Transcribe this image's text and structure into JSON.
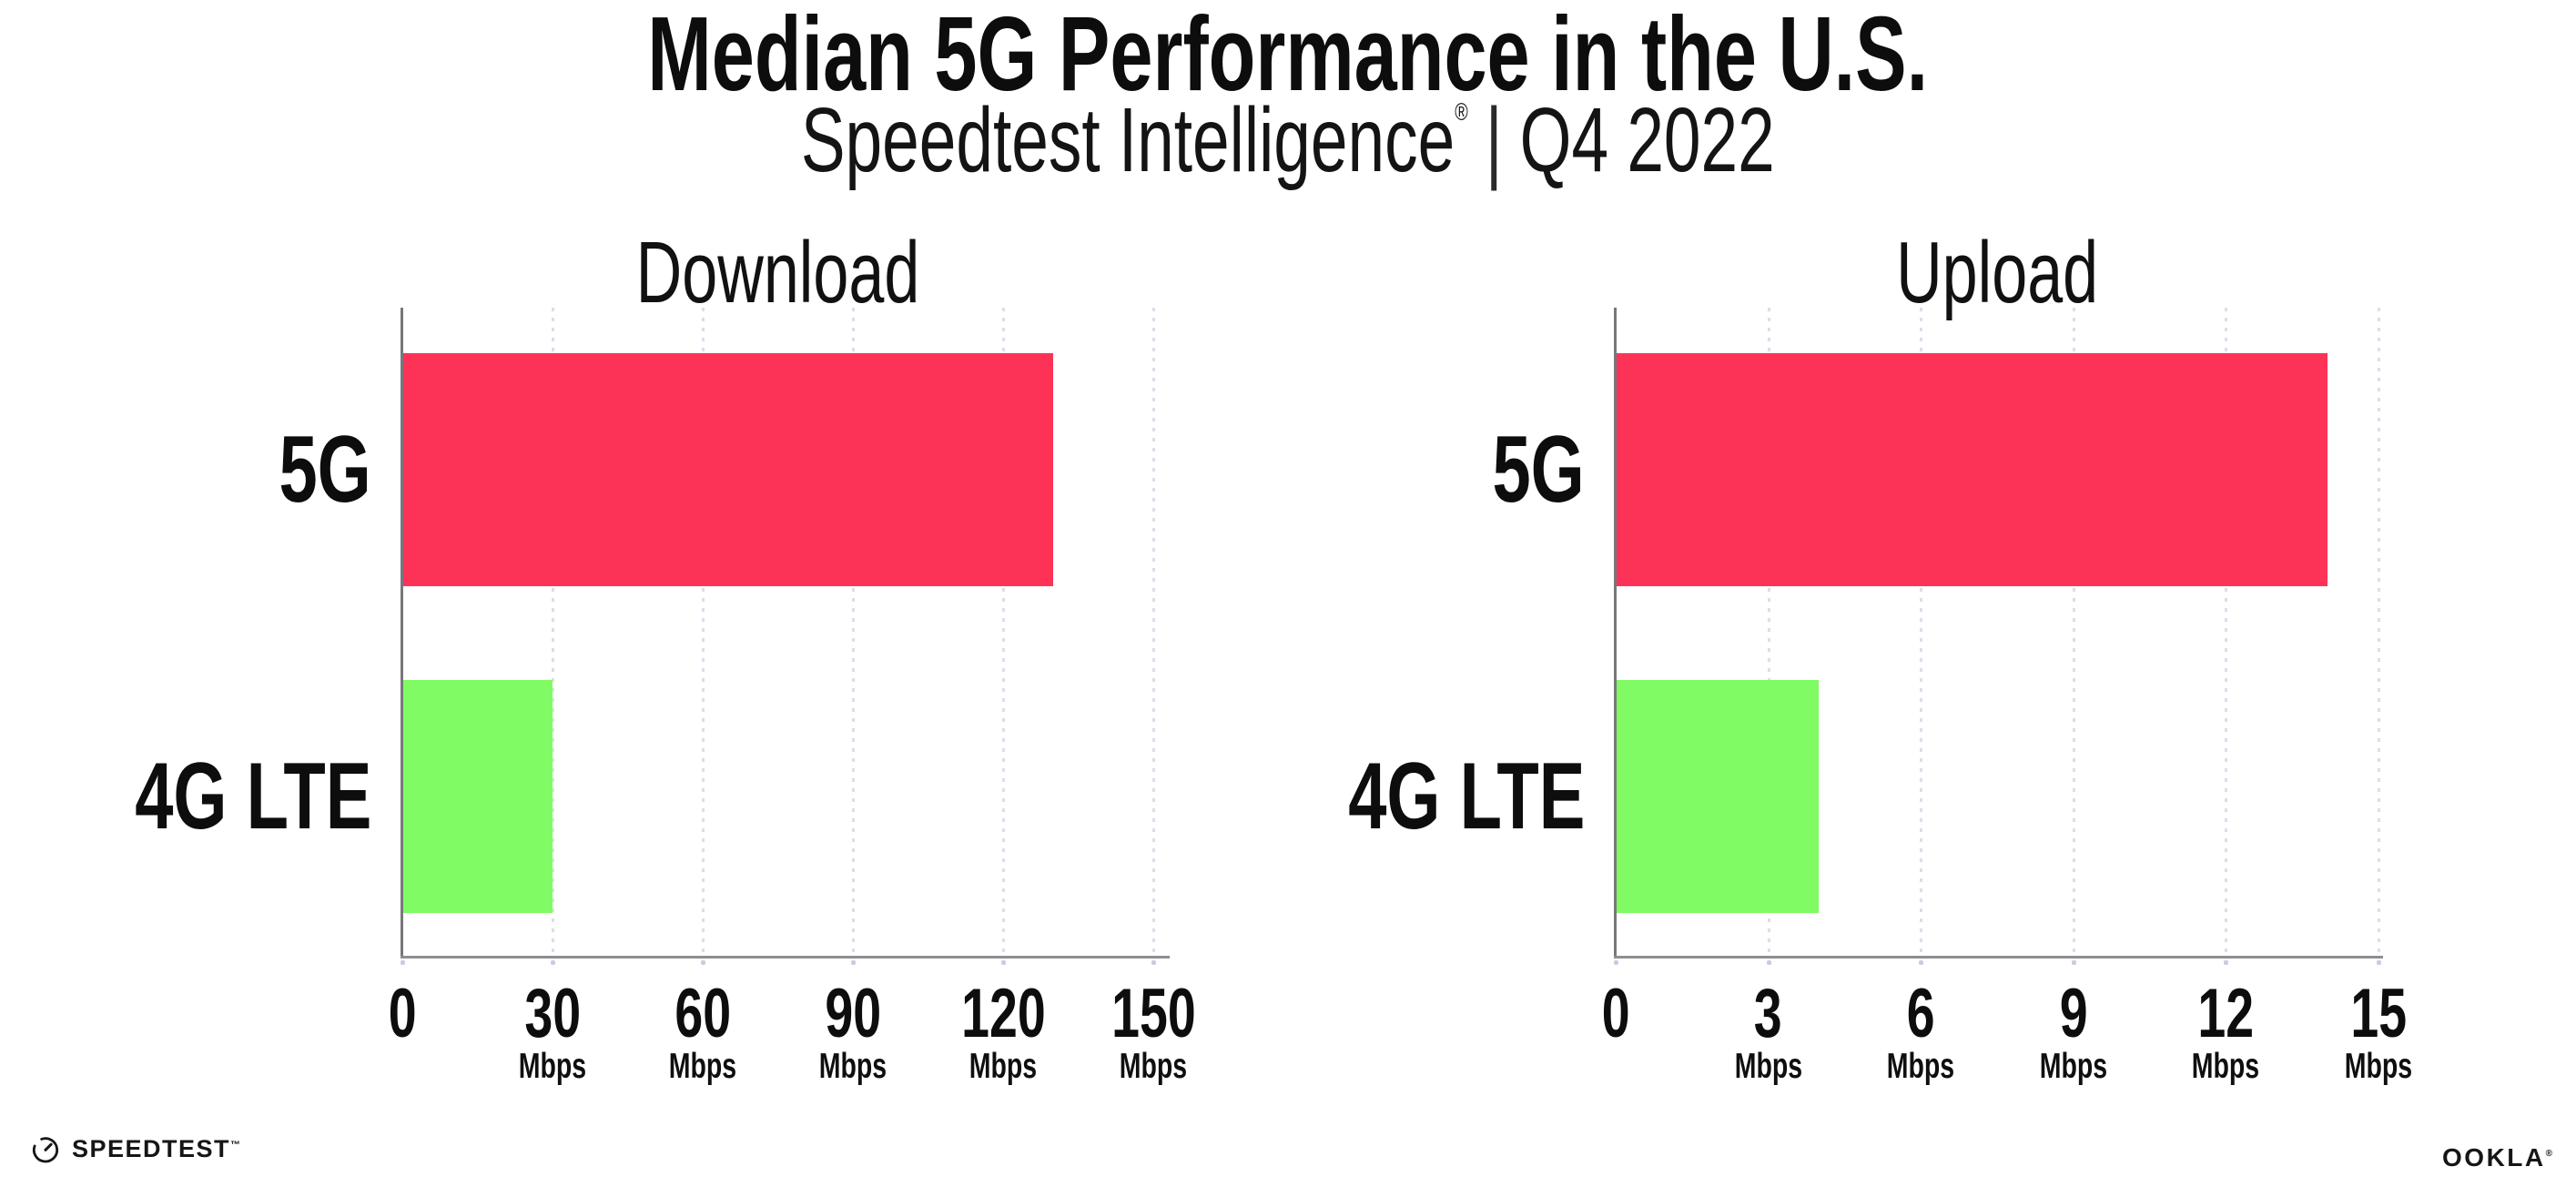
{
  "header": {
    "title": "Median 5G Performance in the U.S.",
    "subtitle": {
      "brand": "Speedtest Intelligence",
      "registered": "®",
      "separator": "|",
      "period": "Q4 2022"
    }
  },
  "colors": {
    "bar_5g": "#fc3357",
    "bar_4g_lte": "#81fb63",
    "gridline": "#dcdde9",
    "axis": "#8e8e93",
    "text": "#0d0d0d"
  },
  "chart_data": [
    {
      "type": "bar",
      "orientation": "horizontal",
      "title": "Download",
      "unit": "Mbps",
      "categories": [
        "5G",
        "4G LTE"
      ],
      "values": [
        130,
        30
      ],
      "xlim": [
        0,
        150
      ],
      "xticks": [
        0,
        30,
        60,
        90,
        120,
        150
      ],
      "grid": "dotted-vertical",
      "legend": "none",
      "bar_colors": [
        "#fc3357",
        "#81fb63"
      ]
    },
    {
      "type": "bar",
      "orientation": "horizontal",
      "title": "Upload",
      "unit": "Mbps",
      "categories": [
        "5G",
        "4G LTE"
      ],
      "values": [
        14,
        4
      ],
      "xlim": [
        0,
        15
      ],
      "xticks": [
        0,
        3,
        6,
        9,
        12,
        15
      ],
      "grid": "dotted-vertical",
      "legend": "none",
      "bar_colors": [
        "#fc3357",
        "#81fb63"
      ]
    }
  ],
  "footer": {
    "speedtest_wordmark": "SPEEDTEST",
    "speedtest_tm": "™",
    "ookla_wordmark": "OOKLA",
    "ookla_reg": "®"
  }
}
